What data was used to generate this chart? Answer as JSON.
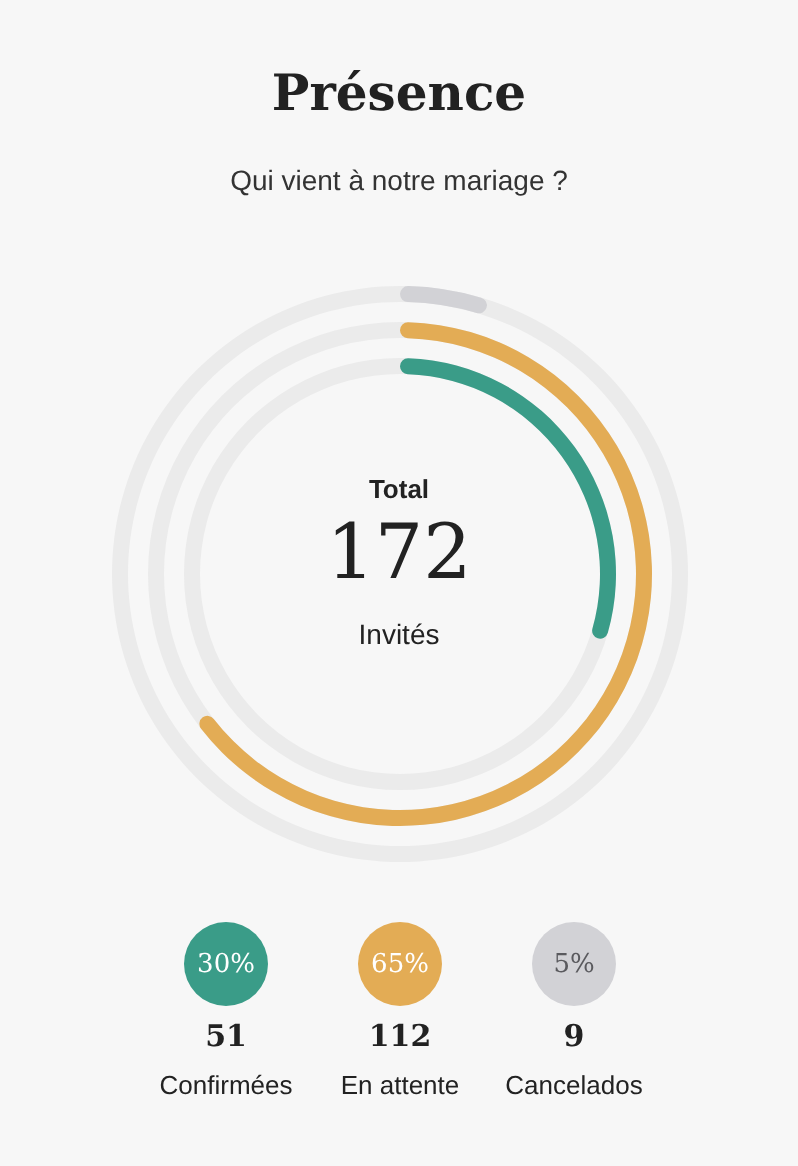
{
  "chart_data": {
    "type": "other",
    "title": "Présence",
    "subtitle": "Qui vient à notre mariage ?",
    "categories": [
      "Confirmées",
      "En attente",
      "Cancelados"
    ],
    "values": [
      30,
      65,
      5
    ],
    "colors": [
      "#3a9c88",
      "#e3ac55",
      "#d2d2d6"
    ],
    "value_labels": [
      "30%",
      "65%",
      "5%"
    ],
    "totals": [
      "172"
    ],
    "annotations": [
      "Total",
      "Invités",
      {
        "text": "51",
        "x": "Confirmées"
      },
      {
        "text": "112",
        "x": "En attente"
      },
      {
        "text": "9",
        "x": "Cancelados"
      }
    ]
  }
}
